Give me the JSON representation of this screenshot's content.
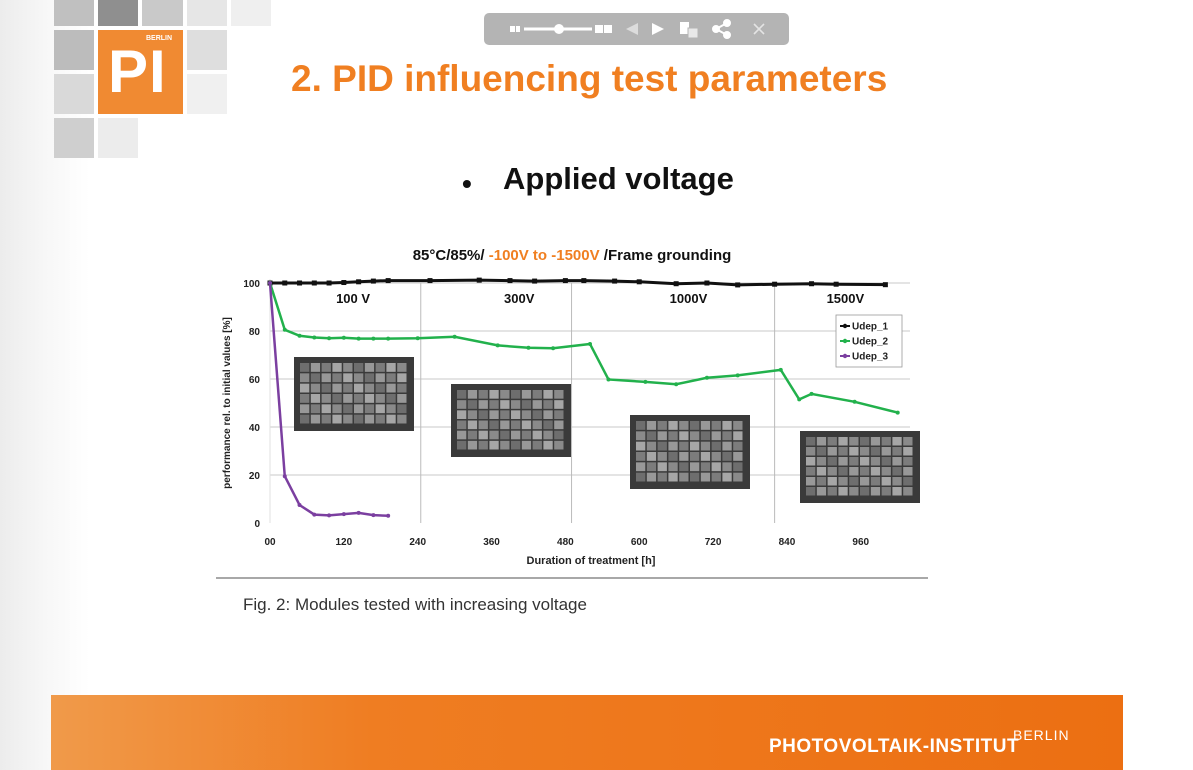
{
  "logo": {
    "text": "PI",
    "berlin": "BERLIN"
  },
  "toolbar": {
    "icons": [
      "zoom-out-icon",
      "zoom-slider",
      "zoom-in-icon",
      "previous-icon",
      "next-icon",
      "pages-icon",
      "share-icon",
      "close-icon"
    ]
  },
  "slide": {
    "title": "2. PID influencing test parameters",
    "bullet": "Applied voltage",
    "caption": "Fig. 2: Modules tested with increasing voltage"
  },
  "footer": {
    "institute": "PHOTOVOLTAIK-INSTITUT",
    "berlin": "BERLIN"
  },
  "colors": {
    "accent": "#f07f21",
    "udep_1": "#111111",
    "udep_2": "#22b14c",
    "udep_3": "#7b3fa0"
  },
  "chart_data": {
    "type": "line",
    "title_parts": [
      "85°C/85%/ ",
      "-100V to -1500V",
      " /Frame grounding"
    ],
    "xlabel": "Duration of treatment  [h]",
    "ylabel": "performance rel. to initial values [%]",
    "xlim": [
      0,
      1040
    ],
    "ylim": [
      0,
      100
    ],
    "x_ticks": [
      {
        "value": 0,
        "label": "00"
      },
      {
        "value": 120,
        "label": "120"
      },
      {
        "value": 240,
        "label": "240"
      },
      {
        "value": 360,
        "label": "360"
      },
      {
        "value": 480,
        "label": "480"
      },
      {
        "value": 600,
        "label": "600"
      },
      {
        "value": 720,
        "label": "720"
      },
      {
        "value": 840,
        "label": "840"
      },
      {
        "value": 960,
        "label": "960"
      }
    ],
    "y_ticks": [
      0,
      20,
      40,
      60,
      80,
      100
    ],
    "grid": true,
    "stage_dividers": [
      245,
      490,
      820
    ],
    "stages": [
      {
        "label": "100 V",
        "x": 135
      },
      {
        "label": "300V",
        "x": 405
      },
      {
        "label": "1000V",
        "x": 680
      },
      {
        "label": "1500V",
        "x": 935
      }
    ],
    "legend_position": "top-right",
    "series": [
      {
        "name": "Udep_1",
        "points": [
          [
            0,
            100
          ],
          [
            24,
            100
          ],
          [
            48,
            100
          ],
          [
            72,
            100
          ],
          [
            96,
            100
          ],
          [
            120,
            100.2
          ],
          [
            144,
            100.5
          ],
          [
            168,
            100.8
          ],
          [
            192,
            101
          ],
          [
            260,
            101
          ],
          [
            340,
            101.2
          ],
          [
            390,
            101
          ],
          [
            430,
            100.8
          ],
          [
            480,
            101
          ],
          [
            510,
            101
          ],
          [
            560,
            100.8
          ],
          [
            600,
            100.5
          ],
          [
            660,
            99.7
          ],
          [
            710,
            100
          ],
          [
            760,
            99.2
          ],
          [
            820,
            99.5
          ],
          [
            880,
            99.7
          ],
          [
            920,
            99.5
          ],
          [
            1000,
            99.3
          ]
        ]
      },
      {
        "name": "Udep_2",
        "points": [
          [
            0,
            100
          ],
          [
            24,
            80.5
          ],
          [
            48,
            78
          ],
          [
            72,
            77.3
          ],
          [
            96,
            77
          ],
          [
            120,
            77.2
          ],
          [
            144,
            76.8
          ],
          [
            168,
            76.8
          ],
          [
            192,
            76.8
          ],
          [
            240,
            77
          ],
          [
            300,
            77.6
          ],
          [
            370,
            74
          ],
          [
            420,
            73
          ],
          [
            460,
            72.8
          ],
          [
            520,
            74.6
          ],
          [
            550,
            59.8
          ],
          [
            610,
            58.8
          ],
          [
            660,
            57.8
          ],
          [
            710,
            60.5
          ],
          [
            760,
            61.5
          ],
          [
            830,
            63.8
          ],
          [
            860,
            51.5
          ],
          [
            880,
            53.8
          ],
          [
            950,
            50.5
          ],
          [
            1020,
            46
          ]
        ]
      },
      {
        "name": "Udep_3",
        "points": [
          [
            0,
            100
          ],
          [
            24,
            19.5
          ],
          [
            48,
            7.5
          ],
          [
            72,
            3.5
          ],
          [
            96,
            3.2
          ],
          [
            120,
            3.7
          ],
          [
            144,
            4.2
          ],
          [
            168,
            3.3
          ],
          [
            192,
            3
          ]
        ]
      }
    ]
  }
}
